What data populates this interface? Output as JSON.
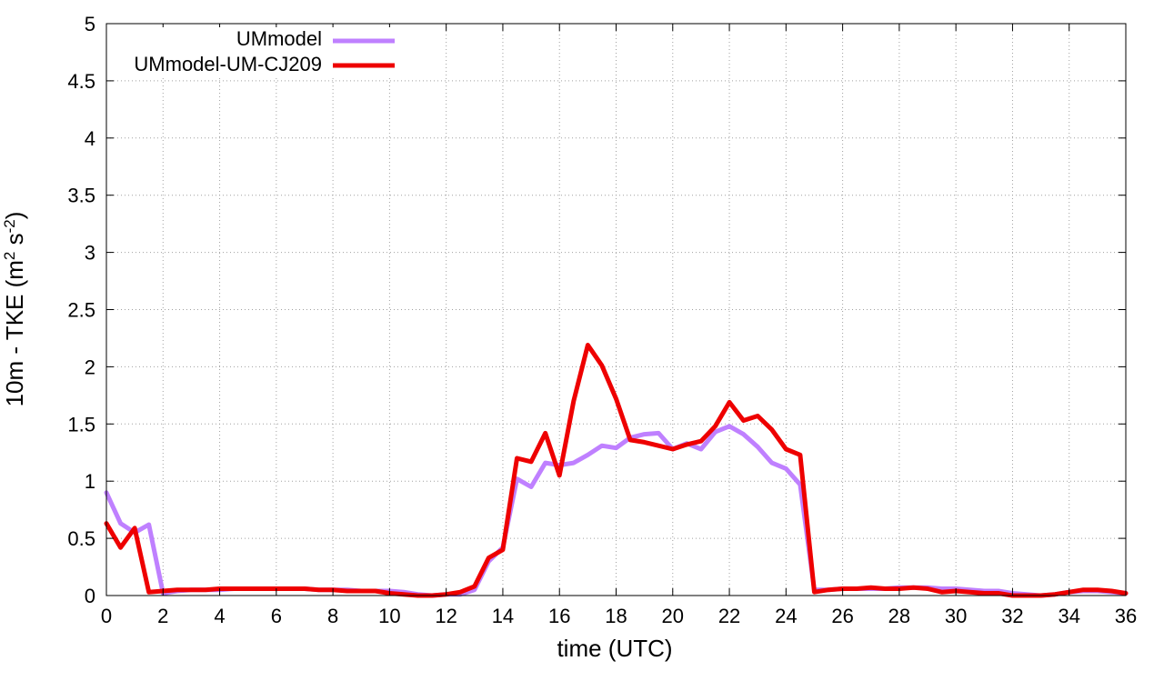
{
  "chart_data": {
    "type": "line",
    "xlabel": "time (UTC)",
    "ylabel_main": "10m - TKE (m",
    "ylabel_sup1": "2",
    "ylabel_mid": " s",
    "ylabel_sup2": "-2",
    "ylabel_end": ")",
    "xlim": [
      0,
      36
    ],
    "ylim": [
      0,
      5
    ],
    "xticks": [
      0,
      2,
      4,
      6,
      8,
      10,
      12,
      14,
      16,
      18,
      20,
      22,
      24,
      26,
      28,
      30,
      32,
      34,
      36
    ],
    "yticks": [
      0,
      0.5,
      1,
      1.5,
      2,
      2.5,
      3,
      3.5,
      4,
      4.5,
      5
    ],
    "ytick_labels": [
      "0",
      "0.5",
      "1",
      "1.5",
      "2",
      "2.5",
      "3",
      "3.5",
      "4",
      "4.5",
      "5"
    ],
    "grid": true,
    "legend_position": "top-left",
    "series": [
      {
        "name": "UMmodel",
        "color": "#bf80ff",
        "x": [
          0,
          0.5,
          1,
          1.5,
          2,
          2.5,
          3,
          3.5,
          4,
          4.5,
          5,
          5.5,
          6,
          6.5,
          7,
          7.5,
          8,
          8.5,
          9,
          9.5,
          10,
          10.5,
          11,
          11.5,
          12,
          12.5,
          13,
          13.5,
          14,
          14.5,
          15,
          15.5,
          16,
          16.5,
          17,
          17.5,
          18,
          18.5,
          19,
          19.5,
          20,
          20.5,
          21,
          21.5,
          22,
          22.5,
          23,
          23.5,
          24,
          24.5,
          25,
          25.5,
          26,
          26.5,
          27,
          27.5,
          28,
          28.5,
          29,
          29.5,
          30,
          30.5,
          31,
          31.5,
          32,
          32.5,
          33,
          33.5,
          34,
          34.5,
          35,
          35.5,
          36
        ],
        "values": [
          0.9,
          0.63,
          0.55,
          0.62,
          0.02,
          0.04,
          0.05,
          0.05,
          0.05,
          0.06,
          0.06,
          0.06,
          0.06,
          0.06,
          0.06,
          0.05,
          0.05,
          0.05,
          0.04,
          0.04,
          0.04,
          0.03,
          0.01,
          0.0,
          0.01,
          0.01,
          0.05,
          0.3,
          0.42,
          1.02,
          0.95,
          1.16,
          1.14,
          1.16,
          1.23,
          1.31,
          1.29,
          1.38,
          1.41,
          1.42,
          1.28,
          1.33,
          1.28,
          1.43,
          1.48,
          1.41,
          1.3,
          1.16,
          1.11,
          0.97,
          0.05,
          0.05,
          0.06,
          0.06,
          0.06,
          0.06,
          0.07,
          0.07,
          0.07,
          0.06,
          0.06,
          0.05,
          0.04,
          0.04,
          0.02,
          0.01,
          0.0,
          0.01,
          0.03,
          0.04,
          0.04,
          0.03,
          0.02
        ]
      },
      {
        "name": "UMmodel-UM-CJ209",
        "color": "#ee0000",
        "x": [
          0,
          0.5,
          1,
          1.5,
          2,
          2.5,
          3,
          3.5,
          4,
          4.5,
          5,
          5.5,
          6,
          6.5,
          7,
          7.5,
          8,
          8.5,
          9,
          9.5,
          10,
          10.5,
          11,
          11.5,
          12,
          12.5,
          13,
          13.5,
          14,
          14.5,
          15,
          15.5,
          16,
          16.5,
          17,
          17.5,
          18,
          18.5,
          19,
          19.5,
          20,
          20.5,
          21,
          21.5,
          22,
          22.5,
          23,
          23.5,
          24,
          24.5,
          25,
          25.5,
          26,
          26.5,
          27,
          27.5,
          28,
          28.5,
          29,
          29.5,
          30,
          30.5,
          31,
          31.5,
          32,
          32.5,
          33,
          33.5,
          34,
          34.5,
          35,
          35.5,
          36
        ],
        "values": [
          0.63,
          0.42,
          0.59,
          0.03,
          0.04,
          0.05,
          0.05,
          0.05,
          0.06,
          0.06,
          0.06,
          0.06,
          0.06,
          0.06,
          0.06,
          0.05,
          0.05,
          0.04,
          0.04,
          0.04,
          0.02,
          0.01,
          0.0,
          0.0,
          0.01,
          0.03,
          0.08,
          0.33,
          0.4,
          1.2,
          1.17,
          1.42,
          1.05,
          1.7,
          2.19,
          2.01,
          1.72,
          1.36,
          1.34,
          1.31,
          1.28,
          1.32,
          1.35,
          1.48,
          1.69,
          1.53,
          1.57,
          1.45,
          1.28,
          1.23,
          0.03,
          0.05,
          0.06,
          0.06,
          0.07,
          0.06,
          0.06,
          0.07,
          0.06,
          0.03,
          0.04,
          0.03,
          0.02,
          0.02,
          0.0,
          0.0,
          0.0,
          0.01,
          0.03,
          0.05,
          0.05,
          0.04,
          0.02
        ]
      }
    ]
  }
}
